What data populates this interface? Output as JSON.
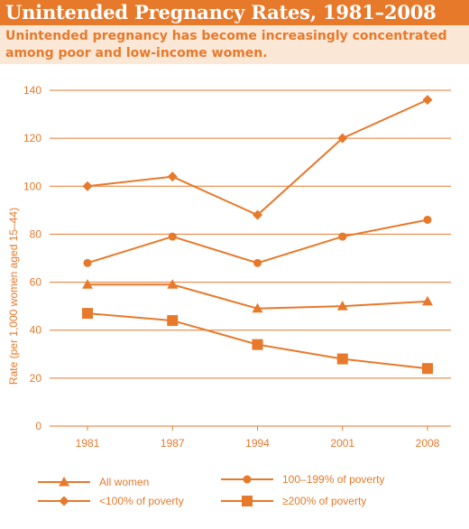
{
  "title": "Unintended Pregnancy Rates, 1981–2008",
  "subtitle": "Unintended pregnancy has become increasingly concentrated among poor and low-income women.",
  "colors": {
    "accent": "#e7792b",
    "subtitle_bg": "#fbe7d6"
  },
  "chart_data": {
    "type": "line",
    "x": [
      "1981",
      "1987",
      "1994",
      "2001",
      "2008"
    ],
    "ylabel": "Rate (per 1,000 women aged 15–44)",
    "ylim": [
      0,
      140
    ],
    "yticks": [
      0,
      20,
      40,
      60,
      80,
      100,
      120,
      140
    ],
    "grid": true,
    "legend_position": "bottom",
    "series": [
      {
        "name": "All women",
        "marker": "triangle",
        "values": [
          59,
          59,
          49,
          50,
          52
        ]
      },
      {
        "name": "100–199% of poverty",
        "marker": "circle",
        "values": [
          68,
          79,
          68,
          79,
          86
        ]
      },
      {
        "name": "<100% of poverty",
        "marker": "diamond",
        "values": [
          100,
          104,
          88,
          120,
          136
        ]
      },
      {
        "name": "≥200% of poverty",
        "marker": "square",
        "values": [
          47,
          44,
          34,
          28,
          24
        ]
      }
    ]
  }
}
